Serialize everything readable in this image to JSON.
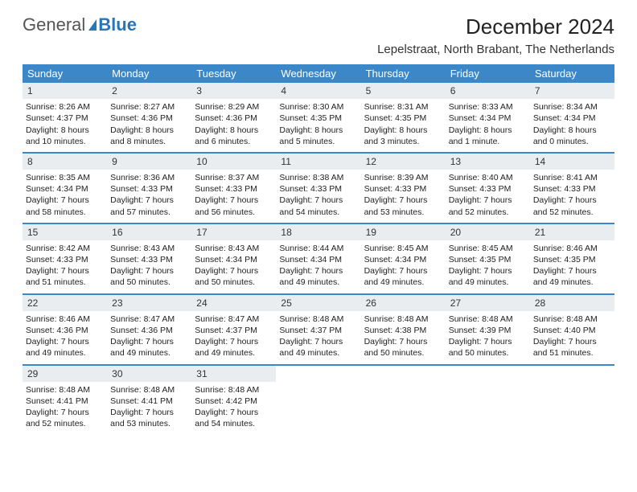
{
  "logo": {
    "part1": "General",
    "part2": "Blue"
  },
  "title": "December 2024",
  "location": "Lepelstraat, North Brabant, The Netherlands",
  "colors": {
    "header_bg": "#3b87c8",
    "header_text": "#ffffff",
    "week_divider": "#3b87c8",
    "daynum_bg": "#e9edef",
    "page_bg": "#ffffff",
    "text": "#222222",
    "logo_gray": "#555555",
    "logo_blue": "#2a74b8"
  },
  "dow": [
    "Sunday",
    "Monday",
    "Tuesday",
    "Wednesday",
    "Thursday",
    "Friday",
    "Saturday"
  ],
  "weeks": [
    [
      {
        "n": "1",
        "sr": "Sunrise: 8:26 AM",
        "ss": "Sunset: 4:37 PM",
        "d1": "Daylight: 8 hours",
        "d2": "and 10 minutes."
      },
      {
        "n": "2",
        "sr": "Sunrise: 8:27 AM",
        "ss": "Sunset: 4:36 PM",
        "d1": "Daylight: 8 hours",
        "d2": "and 8 minutes."
      },
      {
        "n": "3",
        "sr": "Sunrise: 8:29 AM",
        "ss": "Sunset: 4:36 PM",
        "d1": "Daylight: 8 hours",
        "d2": "and 6 minutes."
      },
      {
        "n": "4",
        "sr": "Sunrise: 8:30 AM",
        "ss": "Sunset: 4:35 PM",
        "d1": "Daylight: 8 hours",
        "d2": "and 5 minutes."
      },
      {
        "n": "5",
        "sr": "Sunrise: 8:31 AM",
        "ss": "Sunset: 4:35 PM",
        "d1": "Daylight: 8 hours",
        "d2": "and 3 minutes."
      },
      {
        "n": "6",
        "sr": "Sunrise: 8:33 AM",
        "ss": "Sunset: 4:34 PM",
        "d1": "Daylight: 8 hours",
        "d2": "and 1 minute."
      },
      {
        "n": "7",
        "sr": "Sunrise: 8:34 AM",
        "ss": "Sunset: 4:34 PM",
        "d1": "Daylight: 8 hours",
        "d2": "and 0 minutes."
      }
    ],
    [
      {
        "n": "8",
        "sr": "Sunrise: 8:35 AM",
        "ss": "Sunset: 4:34 PM",
        "d1": "Daylight: 7 hours",
        "d2": "and 58 minutes."
      },
      {
        "n": "9",
        "sr": "Sunrise: 8:36 AM",
        "ss": "Sunset: 4:33 PM",
        "d1": "Daylight: 7 hours",
        "d2": "and 57 minutes."
      },
      {
        "n": "10",
        "sr": "Sunrise: 8:37 AM",
        "ss": "Sunset: 4:33 PM",
        "d1": "Daylight: 7 hours",
        "d2": "and 56 minutes."
      },
      {
        "n": "11",
        "sr": "Sunrise: 8:38 AM",
        "ss": "Sunset: 4:33 PM",
        "d1": "Daylight: 7 hours",
        "d2": "and 54 minutes."
      },
      {
        "n": "12",
        "sr": "Sunrise: 8:39 AM",
        "ss": "Sunset: 4:33 PM",
        "d1": "Daylight: 7 hours",
        "d2": "and 53 minutes."
      },
      {
        "n": "13",
        "sr": "Sunrise: 8:40 AM",
        "ss": "Sunset: 4:33 PM",
        "d1": "Daylight: 7 hours",
        "d2": "and 52 minutes."
      },
      {
        "n": "14",
        "sr": "Sunrise: 8:41 AM",
        "ss": "Sunset: 4:33 PM",
        "d1": "Daylight: 7 hours",
        "d2": "and 52 minutes."
      }
    ],
    [
      {
        "n": "15",
        "sr": "Sunrise: 8:42 AM",
        "ss": "Sunset: 4:33 PM",
        "d1": "Daylight: 7 hours",
        "d2": "and 51 minutes."
      },
      {
        "n": "16",
        "sr": "Sunrise: 8:43 AM",
        "ss": "Sunset: 4:33 PM",
        "d1": "Daylight: 7 hours",
        "d2": "and 50 minutes."
      },
      {
        "n": "17",
        "sr": "Sunrise: 8:43 AM",
        "ss": "Sunset: 4:34 PM",
        "d1": "Daylight: 7 hours",
        "d2": "and 50 minutes."
      },
      {
        "n": "18",
        "sr": "Sunrise: 8:44 AM",
        "ss": "Sunset: 4:34 PM",
        "d1": "Daylight: 7 hours",
        "d2": "and 49 minutes."
      },
      {
        "n": "19",
        "sr": "Sunrise: 8:45 AM",
        "ss": "Sunset: 4:34 PM",
        "d1": "Daylight: 7 hours",
        "d2": "and 49 minutes."
      },
      {
        "n": "20",
        "sr": "Sunrise: 8:45 AM",
        "ss": "Sunset: 4:35 PM",
        "d1": "Daylight: 7 hours",
        "d2": "and 49 minutes."
      },
      {
        "n": "21",
        "sr": "Sunrise: 8:46 AM",
        "ss": "Sunset: 4:35 PM",
        "d1": "Daylight: 7 hours",
        "d2": "and 49 minutes."
      }
    ],
    [
      {
        "n": "22",
        "sr": "Sunrise: 8:46 AM",
        "ss": "Sunset: 4:36 PM",
        "d1": "Daylight: 7 hours",
        "d2": "and 49 minutes."
      },
      {
        "n": "23",
        "sr": "Sunrise: 8:47 AM",
        "ss": "Sunset: 4:36 PM",
        "d1": "Daylight: 7 hours",
        "d2": "and 49 minutes."
      },
      {
        "n": "24",
        "sr": "Sunrise: 8:47 AM",
        "ss": "Sunset: 4:37 PM",
        "d1": "Daylight: 7 hours",
        "d2": "and 49 minutes."
      },
      {
        "n": "25",
        "sr": "Sunrise: 8:48 AM",
        "ss": "Sunset: 4:37 PM",
        "d1": "Daylight: 7 hours",
        "d2": "and 49 minutes."
      },
      {
        "n": "26",
        "sr": "Sunrise: 8:48 AM",
        "ss": "Sunset: 4:38 PM",
        "d1": "Daylight: 7 hours",
        "d2": "and 50 minutes."
      },
      {
        "n": "27",
        "sr": "Sunrise: 8:48 AM",
        "ss": "Sunset: 4:39 PM",
        "d1": "Daylight: 7 hours",
        "d2": "and 50 minutes."
      },
      {
        "n": "28",
        "sr": "Sunrise: 8:48 AM",
        "ss": "Sunset: 4:40 PM",
        "d1": "Daylight: 7 hours",
        "d2": "and 51 minutes."
      }
    ],
    [
      {
        "n": "29",
        "sr": "Sunrise: 8:48 AM",
        "ss": "Sunset: 4:41 PM",
        "d1": "Daylight: 7 hours",
        "d2": "and 52 minutes."
      },
      {
        "n": "30",
        "sr": "Sunrise: 8:48 AM",
        "ss": "Sunset: 4:41 PM",
        "d1": "Daylight: 7 hours",
        "d2": "and 53 minutes."
      },
      {
        "n": "31",
        "sr": "Sunrise: 8:48 AM",
        "ss": "Sunset: 4:42 PM",
        "d1": "Daylight: 7 hours",
        "d2": "and 54 minutes."
      },
      {
        "n": "",
        "sr": "",
        "ss": "",
        "d1": "",
        "d2": "",
        "empty": true
      },
      {
        "n": "",
        "sr": "",
        "ss": "",
        "d1": "",
        "d2": "",
        "empty": true
      },
      {
        "n": "",
        "sr": "",
        "ss": "",
        "d1": "",
        "d2": "",
        "empty": true
      },
      {
        "n": "",
        "sr": "",
        "ss": "",
        "d1": "",
        "d2": "",
        "empty": true
      }
    ]
  ]
}
